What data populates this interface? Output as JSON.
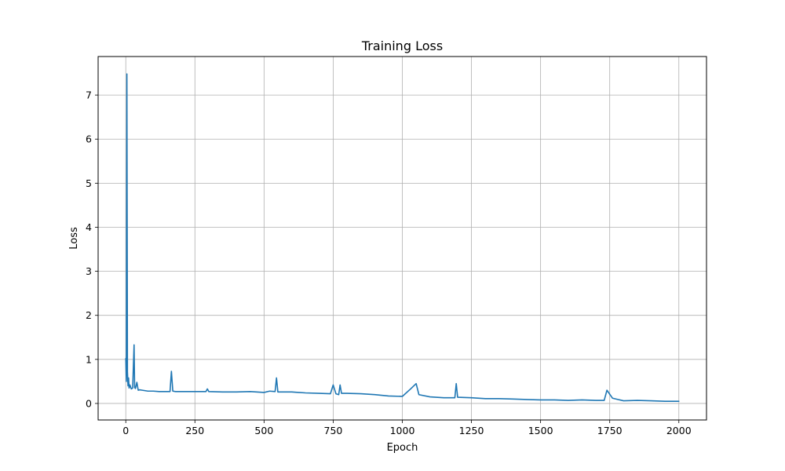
{
  "chart_data": {
    "type": "line",
    "title": "Training Loss",
    "xlabel": "Epoch",
    "ylabel": "Loss",
    "xlim": [
      -100,
      2100
    ],
    "ylim": [
      -0.375,
      7.875
    ],
    "xticks": [
      0,
      250,
      500,
      750,
      1000,
      1250,
      1500,
      1750,
      2000
    ],
    "yticks": [
      0,
      1,
      2,
      3,
      4,
      5,
      6,
      7
    ],
    "grid": true,
    "series": [
      {
        "color": "#1f77b4",
        "x": [
          0,
          2,
          4,
          6,
          8,
          10,
          12,
          15,
          20,
          25,
          30,
          32,
          35,
          40,
          45,
          50,
          60,
          80,
          100,
          120,
          140,
          160,
          165,
          170,
          180,
          200,
          250,
          290,
          295,
          300,
          350,
          400,
          450,
          500,
          520,
          540,
          545,
          550,
          600,
          650,
          700,
          740,
          750,
          760,
          770,
          775,
          780,
          800,
          850,
          900,
          950,
          1000,
          1030,
          1050,
          1060,
          1100,
          1150,
          1190,
          1195,
          1200,
          1250,
          1300,
          1350,
          1400,
          1450,
          1500,
          1550,
          1600,
          1650,
          1700,
          1730,
          1740,
          1760,
          1800,
          1850,
          1900,
          1950,
          2000
        ],
        "y": [
          1.02,
          0.5,
          7.48,
          0.72,
          0.4,
          0.58,
          0.35,
          0.42,
          0.33,
          0.35,
          1.33,
          0.36,
          0.34,
          0.48,
          0.3,
          0.31,
          0.3,
          0.28,
          0.28,
          0.27,
          0.27,
          0.27,
          0.73,
          0.28,
          0.27,
          0.27,
          0.27,
          0.27,
          0.33,
          0.27,
          0.26,
          0.26,
          0.27,
          0.25,
          0.28,
          0.27,
          0.58,
          0.26,
          0.26,
          0.24,
          0.23,
          0.22,
          0.42,
          0.22,
          0.2,
          0.42,
          0.23,
          0.23,
          0.22,
          0.2,
          0.17,
          0.16,
          0.33,
          0.45,
          0.2,
          0.15,
          0.13,
          0.13,
          0.45,
          0.14,
          0.13,
          0.11,
          0.11,
          0.1,
          0.09,
          0.08,
          0.08,
          0.07,
          0.08,
          0.07,
          0.07,
          0.3,
          0.12,
          0.06,
          0.07,
          0.06,
          0.05,
          0.05
        ]
      }
    ]
  }
}
